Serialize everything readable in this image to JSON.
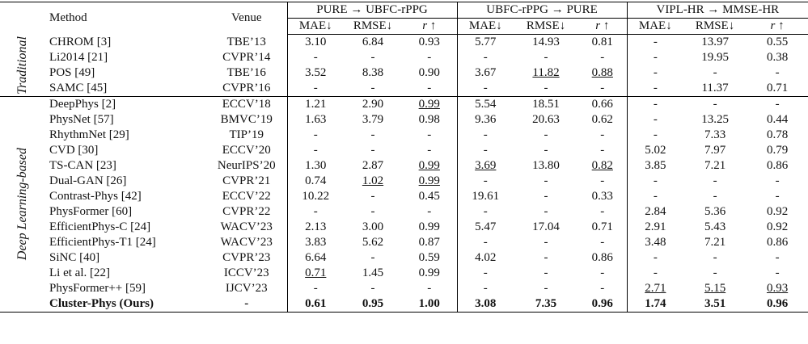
{
  "header": {
    "method": "Method",
    "venue": "Venue",
    "groups": [
      "PURE → UBFC-rPPG",
      "UBFC-rPPG → PURE",
      "VIPL-HR → MMSE-HR"
    ],
    "metrics": [
      "MAE↓",
      "RMSE↓",
      "r ↑"
    ]
  },
  "sections": [
    {
      "label": "Traditional",
      "rows": [
        {
          "method": "CHROM [3]",
          "venue": "TBE’13",
          "values": [
            "3.10",
            "6.84",
            "0.93",
            "5.77",
            "14.93",
            "0.81",
            "-",
            "13.97",
            "0.55"
          ],
          "underline": []
        },
        {
          "method": "Li2014 [21]",
          "venue": "CVPR’14",
          "values": [
            "-",
            "-",
            "-",
            "-",
            "-",
            "-",
            "-",
            "19.95",
            "0.38"
          ],
          "underline": []
        },
        {
          "method": "POS [49]",
          "venue": "TBE’16",
          "values": [
            "3.52",
            "8.38",
            "0.90",
            "3.67",
            "11.82",
            "0.88",
            "-",
            "-",
            "-"
          ],
          "underline": [
            4,
            5
          ]
        },
        {
          "method": "SAMC [45]",
          "venue": "CVPR’16",
          "values": [
            "-",
            "-",
            "-",
            "-",
            "-",
            "-",
            "-",
            "11.37",
            "0.71"
          ],
          "underline": []
        }
      ]
    },
    {
      "label": "Deep Learning-based",
      "rows": [
        {
          "method": "DeepPhys [2]",
          "venue": "ECCV’18",
          "values": [
            "1.21",
            "2.90",
            "0.99",
            "5.54",
            "18.51",
            "0.66",
            "-",
            "-",
            "-"
          ],
          "underline": [
            2
          ]
        },
        {
          "method": "PhysNet [57]",
          "venue": "BMVC’19",
          "values": [
            "1.63",
            "3.79",
            "0.98",
            "9.36",
            "20.63",
            "0.62",
            "-",
            "13.25",
            "0.44"
          ],
          "underline": []
        },
        {
          "method": "RhythmNet [29]",
          "venue": "TIP’19",
          "values": [
            "-",
            "-",
            "-",
            "-",
            "-",
            "-",
            "-",
            "7.33",
            "0.78"
          ],
          "underline": []
        },
        {
          "method": "CVD [30]",
          "venue": "ECCV’20",
          "values": [
            "-",
            "-",
            "-",
            "-",
            "-",
            "-",
            "5.02",
            "7.97",
            "0.79"
          ],
          "underline": []
        },
        {
          "method": "TS-CAN [23]",
          "venue": "NeurIPS’20",
          "values": [
            "1.30",
            "2.87",
            "0.99",
            "3.69",
            "13.80",
            "0.82",
            "3.85",
            "7.21",
            "0.86"
          ],
          "underline": [
            2,
            3,
            5
          ]
        },
        {
          "method": "Dual-GAN [26]",
          "venue": "CVPR’21",
          "values": [
            "0.74",
            "1.02",
            "0.99",
            "-",
            "-",
            "-",
            "-",
            "-",
            "-"
          ],
          "underline": [
            1,
            2
          ]
        },
        {
          "method": "Contrast-Phys [42]",
          "venue": "ECCV’22",
          "values": [
            "10.22",
            "-",
            "0.45",
            "19.61",
            "-",
            "0.33",
            "-",
            "-",
            "-"
          ],
          "underline": []
        },
        {
          "method": "PhysFormer [60]",
          "venue": "CVPR’22",
          "values": [
            "-",
            "-",
            "-",
            "-",
            "-",
            "-",
            "2.84",
            "5.36",
            "0.92"
          ],
          "underline": []
        },
        {
          "method": "EfficientPhys-C [24]",
          "venue": "WACV’23",
          "values": [
            "2.13",
            "3.00",
            "0.99",
            "5.47",
            "17.04",
            "0.71",
            "2.91",
            "5.43",
            "0.92"
          ],
          "underline": []
        },
        {
          "method": "EfficientPhys-T1 [24]",
          "venue": "WACV’23",
          "values": [
            "3.83",
            "5.62",
            "0.87",
            "-",
            "-",
            "-",
            "3.48",
            "7.21",
            "0.86"
          ],
          "underline": []
        },
        {
          "method": "SiNC [40]",
          "venue": "CVPR’23",
          "values": [
            "6.64",
            "-",
            "0.59",
            "4.02",
            "-",
            "0.86",
            "-",
            "-",
            "-"
          ],
          "underline": []
        },
        {
          "method": "Li et al. [22]",
          "venue": "ICCV’23",
          "values": [
            "0.71",
            "1.45",
            "0.99",
            "-",
            "-",
            "-",
            "-",
            "-",
            "-"
          ],
          "underline": [
            0
          ]
        },
        {
          "method": "PhysFormer++ [59]",
          "venue": "IJCV’23",
          "values": [
            "-",
            "-",
            "-",
            "-",
            "-",
            "-",
            "2.71",
            "5.15",
            "0.93"
          ],
          "underline": [
            6,
            7,
            8
          ]
        },
        {
          "method": "Cluster-Phys (Ours)",
          "venue": "-",
          "values": [
            "0.61",
            "0.95",
            "1.00",
            "3.08",
            "7.35",
            "0.96",
            "1.74",
            "3.51",
            "0.96"
          ],
          "underline": [],
          "bold": true
        }
      ]
    }
  ]
}
